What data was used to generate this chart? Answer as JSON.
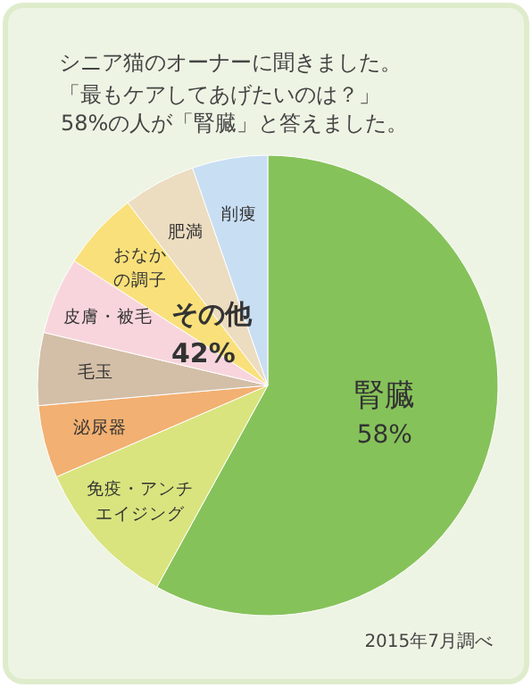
{
  "chart_data": {
    "type": "pie",
    "title": "シニア猫のオーナーに聞きました。",
    "subtitle": "「最もケアしてあげたいのは？」",
    "categories": [
      "腎臓",
      "免疫・アンチエイジング",
      "泌尿器",
      "毛玉",
      "皮膚・被毛",
      "おなかの調子",
      "肥満",
      "削痩"
    ],
    "values": [
      58,
      10.5,
      5.1,
      5.1,
      5.4,
      5.5,
      5.1,
      5.3
    ],
    "colors": [
      "#86c25a",
      "#d9e47e",
      "#f2b072",
      "#d3bea7",
      "#f8d5dc",
      "#f9e07a",
      "#ecdcc0",
      "#c8def2"
    ],
    "value_labels": [
      "58%",
      null,
      null,
      null,
      null,
      null,
      null,
      null
    ],
    "annotations": [
      "58%の人が「腎臓」と答えました。",
      "その他\n42%",
      "2015年7月調べ"
    ],
    "legend": false
  }
}
